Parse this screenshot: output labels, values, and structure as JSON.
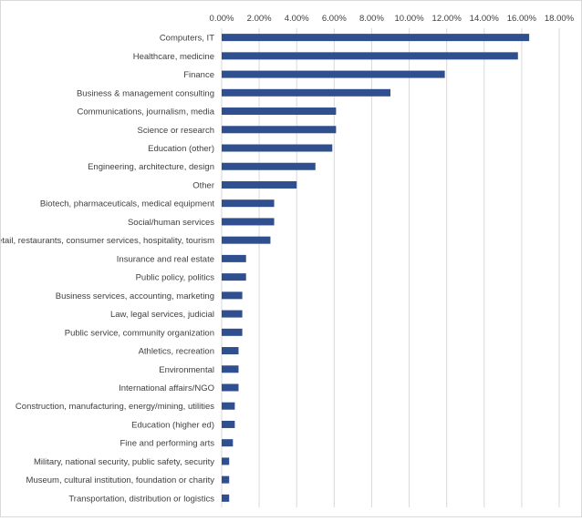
{
  "chart_data": {
    "type": "bar",
    "orientation": "horizontal",
    "title": "",
    "xlabel": "",
    "ylabel": "",
    "xlim": [
      0,
      18
    ],
    "tick_values": [
      0,
      2,
      4,
      6,
      8,
      10,
      12,
      14,
      16,
      18
    ],
    "tick_labels": [
      "0.00%",
      "2.00%",
      "4.00%",
      "6.00%",
      "8.00%",
      "10.00%",
      "12.00%",
      "14.00%",
      "16.00%",
      "18.00%"
    ],
    "x_axis_position": "top",
    "grid": "vertical",
    "legend": "none",
    "bar_color": "#2f4f8f",
    "grid_color": "#d9d9d9",
    "categories": [
      "Computers, IT",
      "Healthcare, medicine",
      "Finance",
      "Business & management consulting",
      "Communications, journalism, media",
      "Science or research",
      "Education (other)",
      "Engineering, architecture, design",
      "Other",
      "Biotech, pharmaceuticals, medical equipment",
      "Social/human services",
      "Retail, restaurants, consumer services, hospitality, tourism",
      "Insurance and real estate",
      "Public policy, politics",
      "Business services, accounting, marketing",
      "Law, legal services, judicial",
      "Public service, community organization",
      "Athletics, recreation",
      "Environmental",
      "International affairs/NGO",
      "Construction, manufacturing, energy/mining, utilities",
      "Education (higher ed)",
      "Fine and performing arts",
      "Military, national security, public safety, security",
      "Museum, cultural institution, foundation or charity",
      "Transportation, distribution or logistics"
    ],
    "values": [
      16.4,
      15.8,
      11.9,
      9.0,
      6.1,
      6.1,
      5.9,
      5.0,
      4.0,
      2.8,
      2.8,
      2.6,
      1.3,
      1.3,
      1.1,
      1.1,
      1.1,
      0.9,
      0.9,
      0.9,
      0.7,
      0.7,
      0.6,
      0.4,
      0.4,
      0.4
    ]
  }
}
